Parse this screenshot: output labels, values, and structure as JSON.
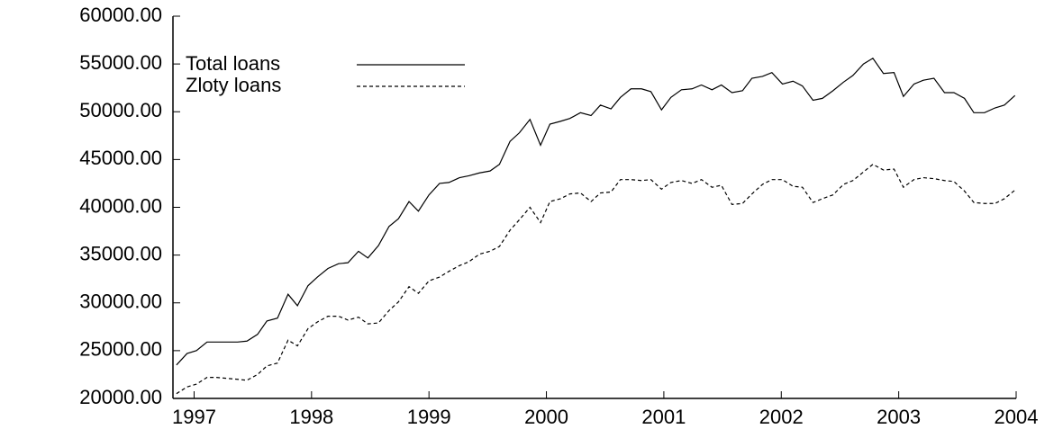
{
  "chart_data": {
    "type": "line",
    "x": [
      1996.85,
      1996.94,
      1997.02,
      1997.11,
      1997.19,
      1997.28,
      1997.37,
      1997.45,
      1997.54,
      1997.62,
      1997.71,
      1997.8,
      1997.88,
      1997.97,
      1998.05,
      1998.14,
      1998.23,
      1998.31,
      1998.4,
      1998.48,
      1998.57,
      1998.66,
      1998.74,
      1998.83,
      1998.91,
      1999.0,
      1999.09,
      1999.17,
      1999.26,
      1999.34,
      1999.43,
      1999.52,
      1999.6,
      1999.69,
      1999.77,
      1999.86,
      1999.95,
      2000.03,
      2000.12,
      2000.2,
      2000.29,
      2000.38,
      2000.46,
      2000.55,
      2000.63,
      2000.72,
      2000.81,
      2000.89,
      2000.98,
      2001.06,
      2001.15,
      2001.24,
      2001.32,
      2001.41,
      2001.49,
      2001.58,
      2001.67,
      2001.75,
      2001.84,
      2001.92,
      2002.01,
      2002.1,
      2002.18,
      2002.27,
      2002.35,
      2002.44,
      2002.53,
      2002.61,
      2002.7,
      2002.78,
      2002.87,
      2002.96,
      2003.04,
      2003.13,
      2003.21,
      2003.3,
      2003.39,
      2003.47,
      2003.56,
      2003.64,
      2003.73,
      2003.82,
      2003.9,
      2003.99
    ],
    "series": [
      {
        "name": "Total loans",
        "color": "#000000",
        "dash": "solid",
        "values": [
          23500,
          24700,
          25000,
          25900,
          25900,
          25900,
          25900,
          26000,
          26700,
          28100,
          28400,
          30900,
          29700,
          31800,
          32700,
          33600,
          34100,
          34200,
          35400,
          34700,
          36000,
          38000,
          38800,
          40600,
          39600,
          41300,
          42500,
          42600,
          43100,
          43300,
          43600,
          43800,
          44500,
          46900,
          47800,
          49200,
          46500,
          48700,
          49000,
          49300,
          49900,
          49600,
          50700,
          50300,
          51500,
          52400,
          52400,
          52100,
          50200,
          51500,
          52300,
          52400,
          52800,
          52300,
          52800,
          52000,
          52200,
          53500,
          53700,
          54100,
          52900,
          53200,
          52700,
          51200,
          51400,
          52200,
          53100,
          53800,
          55000,
          55600,
          54000,
          54100,
          51600,
          52900,
          53300,
          53500,
          52000,
          52000,
          51400,
          49900,
          49900,
          50400,
          50700,
          51700
        ]
      },
      {
        "name": "Zloty loans",
        "color": "#000000",
        "dash": "dashed",
        "values": [
          20500,
          21200,
          21500,
          22200,
          22200,
          22100,
          22000,
          21900,
          22500,
          23400,
          23700,
          26100,
          25500,
          27300,
          28000,
          28600,
          28600,
          28200,
          28500,
          27800,
          27900,
          29200,
          30100,
          31700,
          31000,
          32300,
          32700,
          33300,
          33900,
          34300,
          35100,
          35400,
          35900,
          37600,
          38700,
          40000,
          38400,
          40600,
          40900,
          41400,
          41500,
          40600,
          41500,
          41600,
          42900,
          42900,
          42800,
          42900,
          41900,
          42600,
          42800,
          42500,
          42900,
          42100,
          42300,
          40300,
          40400,
          41400,
          42400,
          42900,
          42900,
          42200,
          42100,
          40500,
          40900,
          41300,
          42400,
          42800,
          43700,
          44500,
          43900,
          44000,
          42100,
          42900,
          43100,
          43000,
          42800,
          42700,
          41700,
          40500,
          40400,
          40400,
          40900,
          41800
        ]
      }
    ],
    "xlim": [
      1996.82,
      2004.0
    ],
    "xticks": [
      1997,
      1998,
      1999,
      2000,
      2001,
      2002,
      2003,
      2004
    ],
    "ylim": [
      20000,
      60000
    ],
    "yticks": [
      {
        "value": 20000,
        "label": "20000.00"
      },
      {
        "value": 25000,
        "label": "25000.00"
      },
      {
        "value": 30000,
        "label": "30000.00"
      },
      {
        "value": 35000,
        "label": "35000.00"
      },
      {
        "value": 40000,
        "label": "40000.00"
      },
      {
        "value": 45000,
        "label": "45000.00"
      },
      {
        "value": 50000,
        "label": "50000.00"
      },
      {
        "value": 55000,
        "label": "55000.00"
      },
      {
        "value": 60000,
        "label": "60000.00"
      }
    ],
    "grid": false,
    "legend": "top-left"
  }
}
